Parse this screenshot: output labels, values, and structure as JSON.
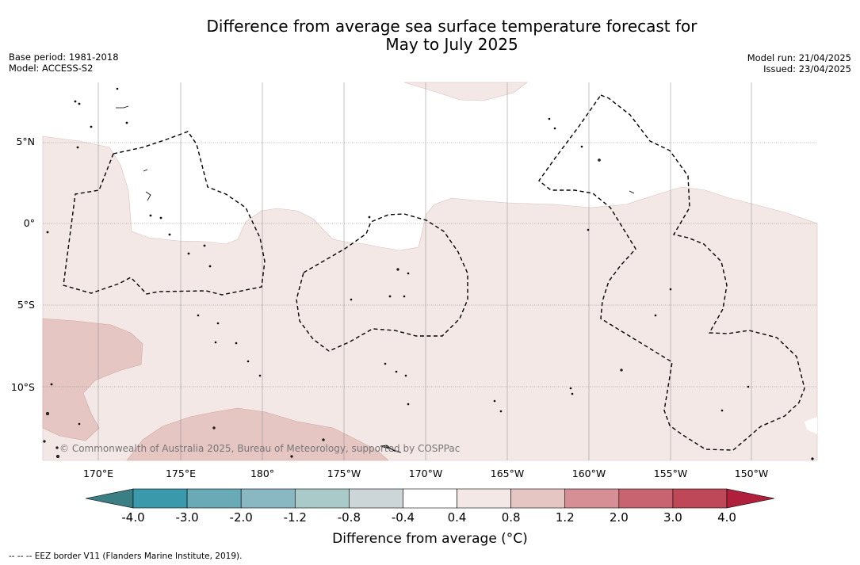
{
  "title": {
    "line1": "Difference from average sea surface temperature forecast for",
    "line2": "May to July 2025"
  },
  "meta_left": {
    "base_period": "Base period: 1981-2018",
    "model": "Model: ACCESS-S2"
  },
  "meta_right": {
    "model_run": "Model run: 21/04/2025",
    "issued": "Issued: 23/04/2025"
  },
  "map": {
    "lat_labels": [
      "5°N",
      "0°",
      "5°S",
      "10°S"
    ],
    "lon_labels": [
      "170°E",
      "175°E",
      "180°",
      "175°W",
      "170°W",
      "165°W",
      "160°W",
      "155°W",
      "150°W"
    ],
    "copyright": "© Commonwealth of Australia 2025, Bureau of Meteorology, supported by COSPPac",
    "colors": {
      "anom_0_4_0_8": "#f4e8e7",
      "anom_0_8_1_2": "#e6c6c3",
      "land": "#3a3a3a",
      "eez_border": "#000000"
    }
  },
  "colorbar": {
    "tick_labels": [
      "-4.0",
      "-3.0",
      "-2.0",
      "-1.2",
      "-0.8",
      "-0.4",
      "0.4",
      "0.8",
      "1.2",
      "2.0",
      "3.0",
      "4.0"
    ],
    "colors": [
      "#3a9aab",
      "#6aaab6",
      "#8ab8c2",
      "#aacaca",
      "#ccd6d8",
      "#ffffff",
      "#f4e8e7",
      "#e6c6c3",
      "#d68f95",
      "#c86470",
      "#bf4858"
    ],
    "under_color": "#3b7e84",
    "over_color": "#b0203c",
    "label": "Difference from average (°C)"
  },
  "footnote": "--  --  -- EEZ border V11 (Flanders Marine Institute, 2019)."
}
